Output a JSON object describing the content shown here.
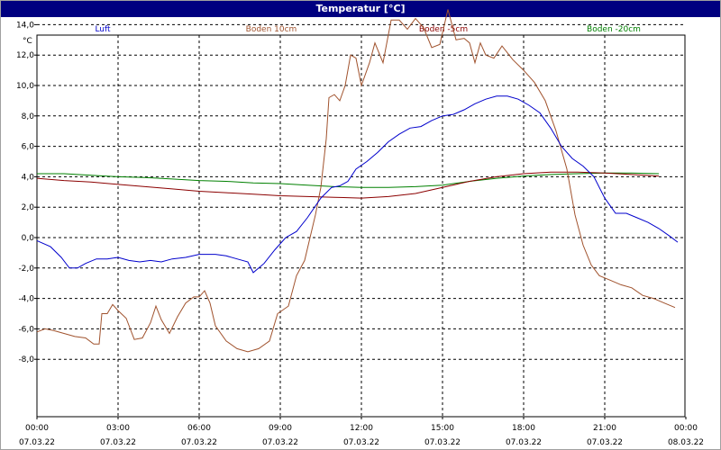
{
  "window": {
    "title": "Temperatur [°C]"
  },
  "chart_data": {
    "type": "line",
    "title": "Temperatur [°C]",
    "ylabel": "°C",
    "xlabel": "",
    "ylim": [
      -8.8,
      16.0
    ],
    "xlim": [
      0,
      24
    ],
    "grid": true,
    "legend_position": "top",
    "y_ticks": [
      "14,0",
      "12,0",
      "10,0",
      "8,0",
      "6,0",
      "4,0",
      "2,0",
      "0,0",
      "-2,0",
      "-4,0",
      "-6,0",
      "-8,0"
    ],
    "y_tick_values": [
      14,
      12,
      10,
      8,
      6,
      4,
      2,
      0,
      -2,
      -4,
      -6,
      -8
    ],
    "x_ticks": [
      {
        "time": "00:00",
        "date": "07.03.22"
      },
      {
        "time": "03:00",
        "date": "07.03.22"
      },
      {
        "time": "06:00",
        "date": "07.03.22"
      },
      {
        "time": "09:00",
        "date": "07.03.22"
      },
      {
        "time": "12:00",
        "date": "07.03.22"
      },
      {
        "time": "15:00",
        "date": "07.03.22"
      },
      {
        "time": "18:00",
        "date": "07.03.22"
      },
      {
        "time": "21:00",
        "date": "07.03.22"
      },
      {
        "time": "00:00",
        "date": "08.03.22"
      }
    ],
    "x_tick_values": [
      0,
      3,
      6,
      9,
      12,
      15,
      18,
      21,
      24
    ],
    "series": [
      {
        "name": "Luft",
        "color": "#0000cc",
        "points": [
          [
            0,
            -0.2
          ],
          [
            0.5,
            -0.6
          ],
          [
            0.9,
            -1.3
          ],
          [
            1.2,
            -2.0
          ],
          [
            1.5,
            -2.0
          ],
          [
            1.8,
            -1.7
          ],
          [
            2.2,
            -1.4
          ],
          [
            2.6,
            -1.4
          ],
          [
            3.0,
            -1.3
          ],
          [
            3.4,
            -1.5
          ],
          [
            3.8,
            -1.6
          ],
          [
            4.2,
            -1.5
          ],
          [
            4.6,
            -1.6
          ],
          [
            5.0,
            -1.4
          ],
          [
            5.5,
            -1.3
          ],
          [
            6.0,
            -1.1
          ],
          [
            6.6,
            -1.1
          ],
          [
            7.0,
            -1.2
          ],
          [
            7.4,
            -1.4
          ],
          [
            7.8,
            -1.6
          ],
          [
            8.0,
            -2.3
          ],
          [
            8.4,
            -1.7
          ],
          [
            8.8,
            -0.8
          ],
          [
            9.2,
            0.0
          ],
          [
            9.6,
            0.4
          ],
          [
            10.0,
            1.3
          ],
          [
            10.5,
            2.6
          ],
          [
            10.9,
            3.3
          ],
          [
            11.2,
            3.4
          ],
          [
            11.5,
            3.7
          ],
          [
            11.8,
            4.5
          ],
          [
            12.2,
            5.0
          ],
          [
            12.6,
            5.6
          ],
          [
            13.0,
            6.3
          ],
          [
            13.4,
            6.8
          ],
          [
            13.8,
            7.2
          ],
          [
            14.2,
            7.3
          ],
          [
            14.6,
            7.7
          ],
          [
            15.0,
            8.0
          ],
          [
            15.4,
            8.1
          ],
          [
            15.8,
            8.4
          ],
          [
            16.2,
            8.8
          ],
          [
            16.6,
            9.1
          ],
          [
            17.0,
            9.3
          ],
          [
            17.4,
            9.3
          ],
          [
            17.8,
            9.1
          ],
          [
            18.2,
            8.7
          ],
          [
            18.6,
            8.2
          ],
          [
            19.0,
            7.2
          ],
          [
            19.4,
            6.0
          ],
          [
            19.8,
            5.2
          ],
          [
            20.2,
            4.7
          ],
          [
            20.6,
            4.0
          ],
          [
            21.0,
            2.6
          ],
          [
            21.4,
            1.6
          ],
          [
            21.8,
            1.6
          ],
          [
            22.2,
            1.3
          ],
          [
            22.6,
            1.0
          ],
          [
            23.0,
            0.6
          ],
          [
            23.4,
            0.1
          ],
          [
            23.7,
            -0.3
          ],
          [
            24.0,
            -0.2
          ]
        ]
      },
      {
        "name": "Boden 10cm",
        "color": "#a0522d",
        "points": [
          [
            0,
            -6.2
          ],
          [
            0.3,
            -6.0
          ],
          [
            0.6,
            -6.1
          ],
          [
            1.0,
            -6.3
          ],
          [
            1.4,
            -6.5
          ],
          [
            1.8,
            -6.6
          ],
          [
            2.1,
            -7.0
          ],
          [
            2.3,
            -7.0
          ],
          [
            2.4,
            -5.0
          ],
          [
            2.6,
            -5.0
          ],
          [
            2.8,
            -4.4
          ],
          [
            3.0,
            -4.8
          ],
          [
            3.3,
            -5.3
          ],
          [
            3.6,
            -6.7
          ],
          [
            3.9,
            -6.6
          ],
          [
            4.2,
            -5.6
          ],
          [
            4.4,
            -4.5
          ],
          [
            4.6,
            -5.4
          ],
          [
            4.9,
            -6.3
          ],
          [
            5.2,
            -5.2
          ],
          [
            5.5,
            -4.3
          ],
          [
            5.8,
            -3.9
          ],
          [
            6.0,
            -3.9
          ],
          [
            6.2,
            -3.5
          ],
          [
            6.4,
            -4.3
          ],
          [
            6.6,
            -5.8
          ],
          [
            7.0,
            -6.8
          ],
          [
            7.4,
            -7.3
          ],
          [
            7.8,
            -7.5
          ],
          [
            8.2,
            -7.3
          ],
          [
            8.6,
            -6.8
          ],
          [
            8.9,
            -5.0
          ],
          [
            9.3,
            -4.5
          ],
          [
            9.6,
            -2.5
          ],
          [
            9.9,
            -1.5
          ],
          [
            10.1,
            0.0
          ],
          [
            10.3,
            1.5
          ],
          [
            10.5,
            3.3
          ],
          [
            10.7,
            6.5
          ],
          [
            10.8,
            9.2
          ],
          [
            11.0,
            9.4
          ],
          [
            11.2,
            9.0
          ],
          [
            11.4,
            10.0
          ],
          [
            11.6,
            12.0
          ],
          [
            11.8,
            11.8
          ],
          [
            12.0,
            10.0
          ],
          [
            12.3,
            11.5
          ],
          [
            12.5,
            12.8
          ],
          [
            12.8,
            11.5
          ],
          [
            13.1,
            14.3
          ],
          [
            13.4,
            14.3
          ],
          [
            13.7,
            13.7
          ],
          [
            14.0,
            14.4
          ],
          [
            14.3,
            13.8
          ],
          [
            14.6,
            12.5
          ],
          [
            14.9,
            12.7
          ],
          [
            15.2,
            15.0
          ],
          [
            15.5,
            13.0
          ],
          [
            15.8,
            13.1
          ],
          [
            16.0,
            12.8
          ],
          [
            16.2,
            11.5
          ],
          [
            16.4,
            12.8
          ],
          [
            16.6,
            12.0
          ],
          [
            16.9,
            11.8
          ],
          [
            17.2,
            12.6
          ],
          [
            17.6,
            11.7
          ],
          [
            18.0,
            11.0
          ],
          [
            18.4,
            10.2
          ],
          [
            18.8,
            9.0
          ],
          [
            19.2,
            7.0
          ],
          [
            19.6,
            4.5
          ],
          [
            19.9,
            1.5
          ],
          [
            20.2,
            -0.5
          ],
          [
            20.5,
            -1.8
          ],
          [
            20.8,
            -2.5
          ],
          [
            21.2,
            -2.8
          ],
          [
            21.6,
            -3.1
          ],
          [
            22.0,
            -3.3
          ],
          [
            22.4,
            -3.8
          ],
          [
            22.8,
            -4.0
          ],
          [
            23.2,
            -4.3
          ],
          [
            23.6,
            -4.6
          ],
          [
            24.0,
            -4.9
          ],
          [
            24.4,
            -5.1
          ],
          [
            24.8,
            -5.2
          ],
          [
            25.0,
            -5.2
          ]
        ]
      },
      {
        "name": "Boden -5cm",
        "color": "#8b0000",
        "points": [
          [
            0,
            3.9
          ],
          [
            1.0,
            3.75
          ],
          [
            2.0,
            3.65
          ],
          [
            3.0,
            3.5
          ],
          [
            4.0,
            3.35
          ],
          [
            5.0,
            3.2
          ],
          [
            6.0,
            3.05
          ],
          [
            7.0,
            2.95
          ],
          [
            8.0,
            2.85
          ],
          [
            9.0,
            2.75
          ],
          [
            10.0,
            2.7
          ],
          [
            11.0,
            2.65
          ],
          [
            12.0,
            2.6
          ],
          [
            13.0,
            2.7
          ],
          [
            14.0,
            2.9
          ],
          [
            15.0,
            3.3
          ],
          [
            16.0,
            3.7
          ],
          [
            17.0,
            4.0
          ],
          [
            18.0,
            4.2
          ],
          [
            19.0,
            4.3
          ],
          [
            20.0,
            4.3
          ],
          [
            21.0,
            4.25
          ],
          [
            22.0,
            4.15
          ],
          [
            23.0,
            4.05
          ],
          [
            24.0,
            3.95
          ],
          [
            25.0,
            3.9
          ]
        ]
      },
      {
        "name": "Boden -20cm",
        "color": "#008000",
        "points": [
          [
            0,
            4.2
          ],
          [
            1.0,
            4.2
          ],
          [
            2.0,
            4.1
          ],
          [
            3.0,
            4.0
          ],
          [
            4.0,
            3.95
          ],
          [
            5.0,
            3.85
          ],
          [
            6.0,
            3.75
          ],
          [
            7.0,
            3.7
          ],
          [
            8.0,
            3.6
          ],
          [
            9.0,
            3.55
          ],
          [
            10.0,
            3.45
          ],
          [
            11.0,
            3.35
          ],
          [
            12.0,
            3.3
          ],
          [
            13.0,
            3.3
          ],
          [
            14.0,
            3.35
          ],
          [
            15.0,
            3.45
          ],
          [
            16.0,
            3.7
          ],
          [
            17.0,
            3.9
          ],
          [
            18.0,
            4.05
          ],
          [
            19.0,
            4.15
          ],
          [
            20.0,
            4.2
          ],
          [
            21.0,
            4.25
          ],
          [
            22.0,
            4.25
          ],
          [
            23.0,
            4.2
          ],
          [
            24.0,
            4.2
          ],
          [
            25.0,
            4.2
          ]
        ]
      }
    ]
  }
}
